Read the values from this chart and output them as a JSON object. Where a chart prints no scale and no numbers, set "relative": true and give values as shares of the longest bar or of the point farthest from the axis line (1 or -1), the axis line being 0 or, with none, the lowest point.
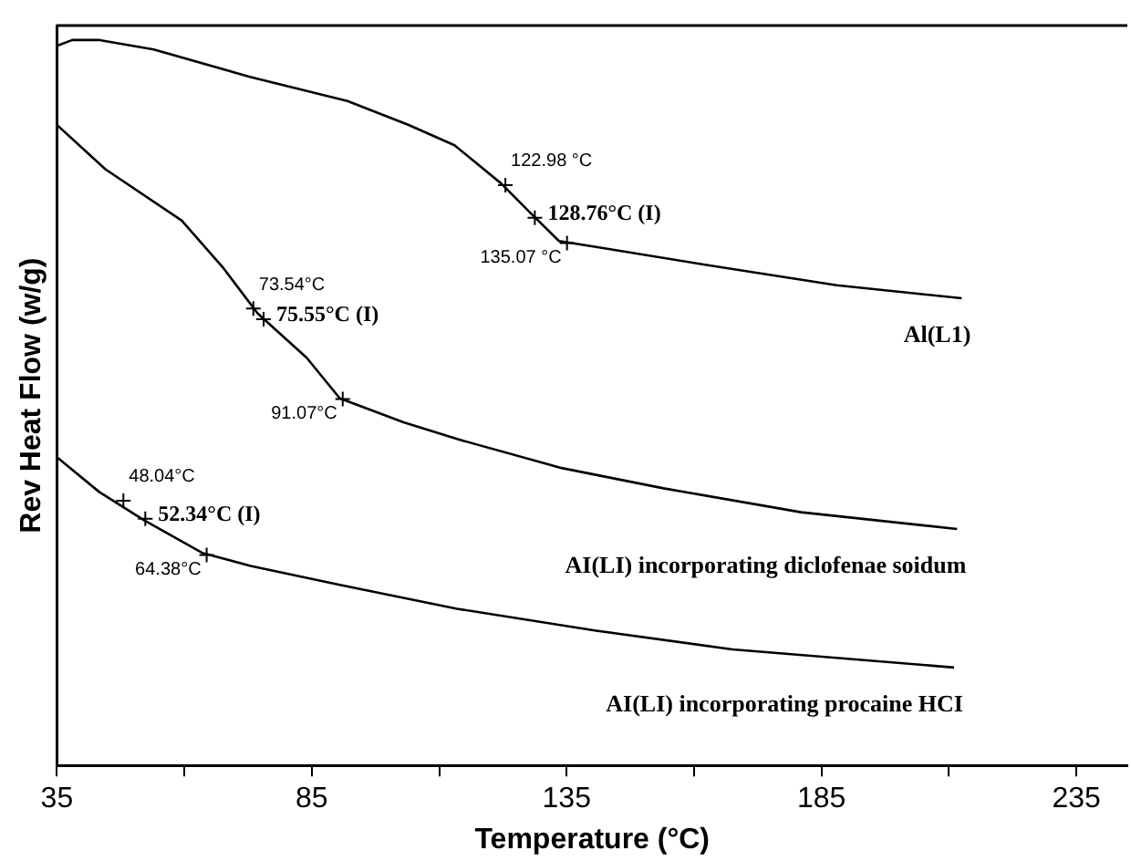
{
  "chart_data": {
    "type": "line",
    "relative": true,
    "xlabel": "Temperature (°C)",
    "ylabel": "Rev Heat Flow (w/g)",
    "xlim": [
      35,
      245
    ],
    "xticks": [
      35,
      {
        "value": 60,
        "label": null
      },
      85,
      {
        "value": 110,
        "label": null
      },
      135,
      {
        "value": 160,
        "label": null
      },
      185,
      {
        "value": 210,
        "label": null
      },
      235
    ],
    "grid": false,
    "legend": false,
    "marker": "none",
    "line_style": "solid",
    "series": [
      {
        "name": "Al(L1)",
        "color": "#000000",
        "x": [
          35,
          38,
          43.4,
          54,
          73,
          92,
          104,
          113,
          122.2,
          127.7,
          133.5,
          140.5,
          165,
          188,
          212.5
        ],
        "values": [
          0.992,
          1,
          1,
          0.987,
          0.949,
          0.916,
          0.883,
          0.855,
          0.802,
          0.763,
          0.723,
          0.715,
          0.687,
          0.662,
          0.644
        ]
      },
      {
        "name": "AI(LI) incorporating diclofenae soidum",
        "color": "#000000",
        "x": [
          35,
          44.5,
          59.5,
          67.5,
          74.4,
          84,
          90.5,
          103,
          113.5,
          134,
          154,
          181,
          211.6
        ],
        "values": [
          0.883,
          0.822,
          0.751,
          0.687,
          0.623,
          0.562,
          0.506,
          0.473,
          0.45,
          0.41,
          0.382,
          0.349,
          0.326
        ]
      },
      {
        "name": "AI(LI) incorporating procaine HCI",
        "color": "#000000",
        "x": [
          35,
          43.3,
          52.1,
          63.5,
          73,
          90.5,
          113.5,
          140.5,
          167.5,
          211
        ],
        "values": [
          0.425,
          0.377,
          0.338,
          0.293,
          0.275,
          0.249,
          0.216,
          0.186,
          0.16,
          0.135
        ]
      }
    ],
    "annotations": [
      {
        "text": "122.98 °C",
        "x": 122.98,
        "y": 0.8
      },
      {
        "text": "128.76°C (I)",
        "x": 128.76,
        "y": 0.755
      },
      {
        "text": "135.07 °C",
        "x": 135.07,
        "y": 0.72
      },
      {
        "text": "73.54°C",
        "x": 73.54,
        "y": 0.63
      },
      {
        "text": "75.55°C (I)",
        "x": 75.55,
        "y": 0.615
      },
      {
        "text": "91.07°C",
        "x": 91.07,
        "y": 0.505
      },
      {
        "text": "48.04°C",
        "x": 48.04,
        "y": 0.365
      },
      {
        "text": "52.34°C (I)",
        "x": 52.34,
        "y": 0.34
      },
      {
        "text": "64.38°C",
        "x": 64.38,
        "y": 0.29
      }
    ]
  }
}
